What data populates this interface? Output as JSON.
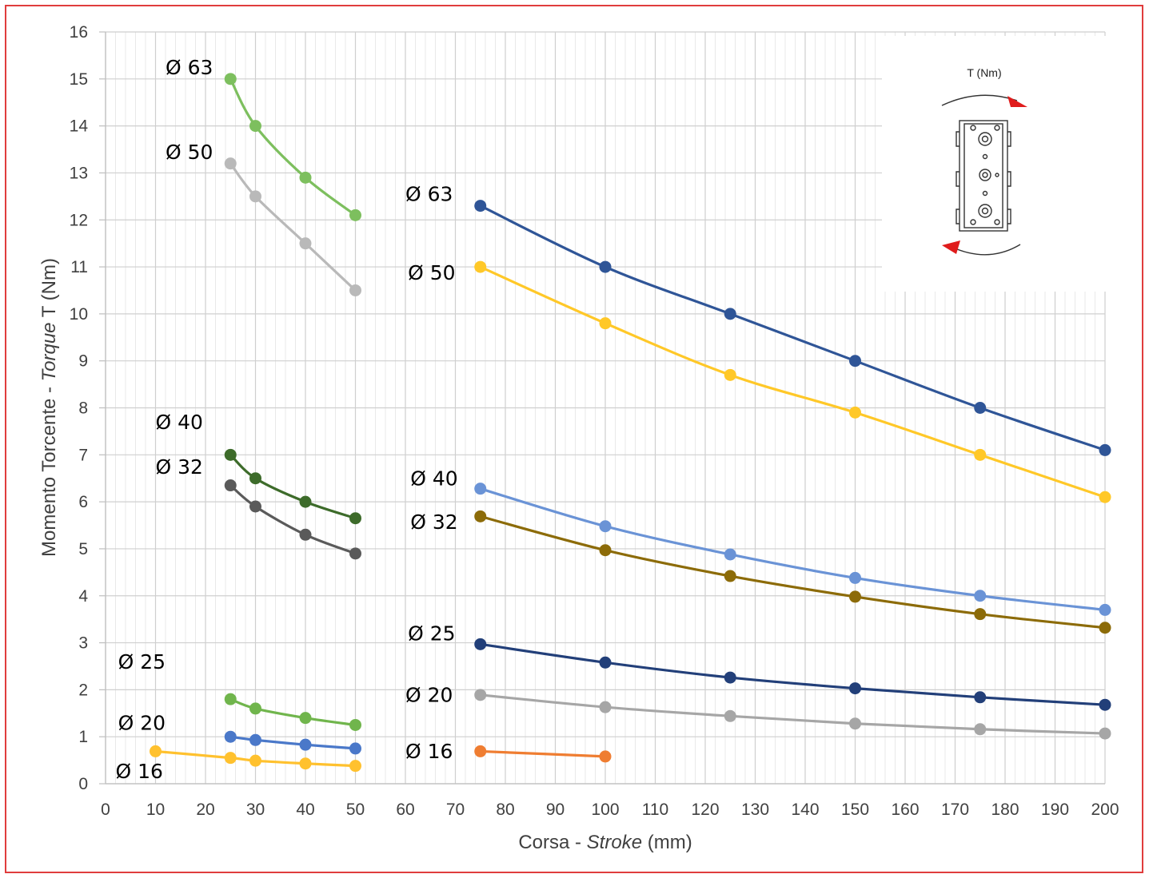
{
  "chart_data": {
    "type": "line",
    "xlabel": {
      "prefix": "Corsa - ",
      "italic": "Stroke",
      "suffix": " (mm)"
    },
    "ylabel": {
      "prefix": "Momento Torcente - ",
      "italic": "Torque",
      "suffix": " T (Nm)"
    },
    "xlim": [
      0,
      200
    ],
    "ylim": [
      0,
      16
    ],
    "x_ticks": [
      0,
      10,
      20,
      30,
      40,
      50,
      60,
      70,
      80,
      90,
      100,
      110,
      120,
      130,
      140,
      150,
      160,
      170,
      180,
      190,
      200
    ],
    "y_ticks": [
      0,
      1,
      2,
      3,
      4,
      5,
      6,
      7,
      8,
      9,
      10,
      11,
      12,
      13,
      14,
      15,
      16
    ],
    "grid": "major and minor",
    "series": [
      {
        "name": "Ø 63",
        "color": "#7dbf5e",
        "x": [
          25,
          30,
          40,
          50
        ],
        "y": [
          15.0,
          14.0,
          12.9,
          12.1
        ]
      },
      {
        "name": "Ø 50",
        "color": "#b9b9b9",
        "x": [
          25,
          30,
          40,
          50
        ],
        "y": [
          13.2,
          12.5,
          11.5,
          10.5
        ]
      },
      {
        "name": "Ø 40",
        "color": "#3d6b2a",
        "x": [
          25,
          30,
          40,
          50
        ],
        "y": [
          7.0,
          6.5,
          6.0,
          5.65
        ]
      },
      {
        "name": "Ø 32",
        "color": "#5a5a5a",
        "x": [
          25,
          30,
          40,
          50
        ],
        "y": [
          6.35,
          5.9,
          5.3,
          4.9
        ]
      },
      {
        "name": "Ø 25",
        "color": "#70b54c",
        "x": [
          25,
          30,
          40,
          50
        ],
        "y": [
          1.8,
          1.6,
          1.4,
          1.25
        ]
      },
      {
        "name": "Ø 20",
        "color": "#4a78c9",
        "x": [
          25,
          30,
          40,
          50
        ],
        "y": [
          1.0,
          0.93,
          0.83,
          0.75
        ]
      },
      {
        "name": "Ø 16",
        "color": "#ffc12e",
        "x": [
          10,
          25,
          30,
          40,
          50
        ],
        "y": [
          0.69,
          0.55,
          0.49,
          0.43,
          0.38
        ]
      },
      {
        "name": "Ø 63",
        "color": "#2f5597",
        "x": [
          75,
          100,
          125,
          150,
          175,
          200
        ],
        "y": [
          12.3,
          11.0,
          10.0,
          9.0,
          8.0,
          7.1
        ]
      },
      {
        "name": "Ø 50",
        "color": "#ffc828",
        "x": [
          75,
          100,
          125,
          150,
          175,
          200
        ],
        "y": [
          11.0,
          9.8,
          8.7,
          7.9,
          7.0,
          6.1
        ]
      },
      {
        "name": "Ø 40",
        "color": "#6a93d6",
        "x": [
          75,
          100,
          125,
          150,
          175,
          200
        ],
        "y": [
          6.28,
          5.48,
          4.88,
          4.38,
          4.0,
          3.7
        ]
      },
      {
        "name": "Ø 32",
        "color": "#8c6b08",
        "x": [
          75,
          100,
          125,
          150,
          175,
          200
        ],
        "y": [
          5.69,
          4.97,
          4.42,
          3.98,
          3.61,
          3.32
        ]
      },
      {
        "name": "Ø 25",
        "color": "#223f79",
        "x": [
          75,
          100,
          125,
          150,
          175,
          200
        ],
        "y": [
          2.97,
          2.58,
          2.26,
          2.03,
          1.84,
          1.68
        ]
      },
      {
        "name": "Ø 20",
        "color": "#a6a6a6",
        "x": [
          75,
          100,
          125,
          150,
          175,
          200
        ],
        "y": [
          1.89,
          1.63,
          1.44,
          1.28,
          1.16,
          1.07
        ]
      },
      {
        "name": "Ø 16",
        "color": "#ef7d31",
        "x": [
          75,
          100
        ],
        "y": [
          0.69,
          0.58
        ]
      }
    ],
    "label_anchors": [
      {
        "text": "Ø 63",
        "x": 12,
        "y": 15.1
      },
      {
        "text": "Ø 50",
        "x": 12,
        "y": 13.3
      },
      {
        "text": "Ø 40",
        "x": 10,
        "y": 7.55
      },
      {
        "text": "Ø 32",
        "x": 10,
        "y": 6.6
      },
      {
        "text": "Ø 25",
        "x": 2.5,
        "y": 2.45
      },
      {
        "text": "Ø 20",
        "x": 2.5,
        "y": 1.15
      },
      {
        "text": "Ø 16",
        "x": 2,
        "y": 0.12
      },
      {
        "text": "Ø 63",
        "x": 60,
        "y": 12.4
      },
      {
        "text": "Ø 50",
        "x": 60.5,
        "y": 10.73
      },
      {
        "text": "Ø 40",
        "x": 61,
        "y": 6.35
      },
      {
        "text": "Ø 32",
        "x": 61,
        "y": 5.42
      },
      {
        "text": "Ø 25",
        "x": 60.5,
        "y": 3.05
      },
      {
        "text": "Ø 20",
        "x": 60,
        "y": 1.74
      },
      {
        "text": "Ø 16",
        "x": 60,
        "y": 0.54
      }
    ],
    "inset": {
      "title": "T (Nm)",
      "icon": "cylinder-rotation-diagram",
      "arrow_color": "#e01c1c"
    }
  }
}
